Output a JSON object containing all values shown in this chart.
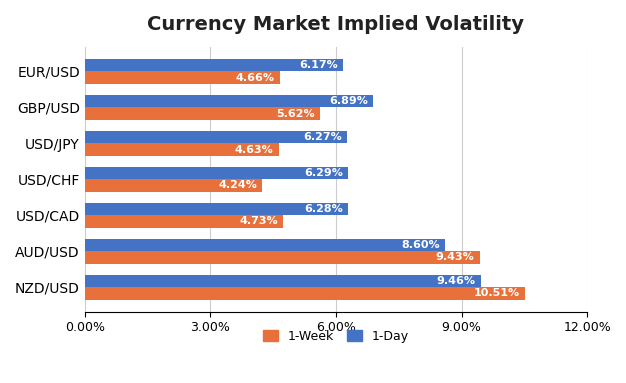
{
  "title": "Currency Market Implied Volatility",
  "categories": [
    "EUR/USD",
    "GBP/USD",
    "USD/JPY",
    "USD/CHF",
    "USD/CAD",
    "AUD/USD",
    "NZD/USD"
  ],
  "week1_values": [
    4.66,
    5.62,
    4.63,
    4.24,
    4.73,
    9.43,
    10.51
  ],
  "day1_values": [
    6.17,
    6.89,
    6.27,
    6.29,
    6.28,
    8.6,
    9.46
  ],
  "week1_color": "#E8703A",
  "day1_color": "#4472C4",
  "background_color": "#FFFFFF",
  "xlim": [
    0,
    12
  ],
  "xticks": [
    0,
    3,
    6,
    9,
    12
  ],
  "xtick_labels": [
    "0.00%",
    "3.00%",
    "6.00%",
    "9.00%",
    "12.00%"
  ],
  "legend_labels": [
    "1-Week",
    "1-Day"
  ],
  "bar_height": 0.35,
  "label_fontsize": 8.0,
  "title_fontsize": 14
}
